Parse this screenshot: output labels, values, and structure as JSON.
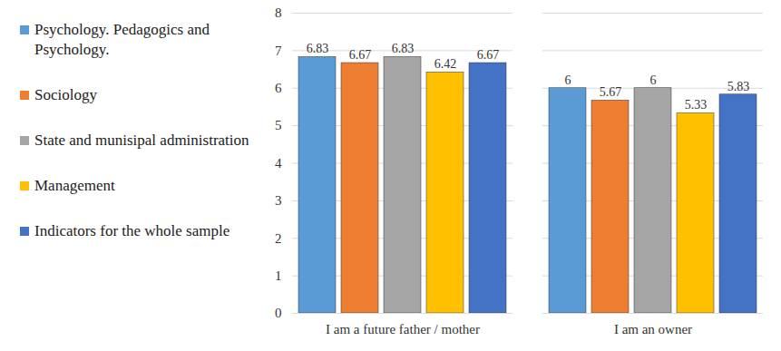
{
  "chart_data": {
    "type": "bar",
    "categories": [
      "I am a future father / mother",
      "I am an owner"
    ],
    "series": [
      {
        "name": "Psychology. Pedagogics and Psychology.",
        "color": "#5B9BD5",
        "values": [
          6.83,
          6
        ]
      },
      {
        "name": "Sociology",
        "color": "#ED7D31",
        "values": [
          6.67,
          5.67
        ]
      },
      {
        "name": "State and munisipal administration",
        "color": "#A5A5A5",
        "values": [
          6.83,
          6
        ]
      },
      {
        "name": "Management",
        "color": "#FFC000",
        "values": [
          6.42,
          5.33
        ]
      },
      {
        "name": "Indicators for the whole sample",
        "color": "#4472C4",
        "values": [
          6.67,
          5.83
        ]
      }
    ],
    "ylim": [
      0,
      8
    ],
    "yticks": [
      0,
      1,
      2,
      3,
      4,
      5,
      6,
      7,
      8
    ],
    "grid": true,
    "legend": "left",
    "data_labels": true
  }
}
